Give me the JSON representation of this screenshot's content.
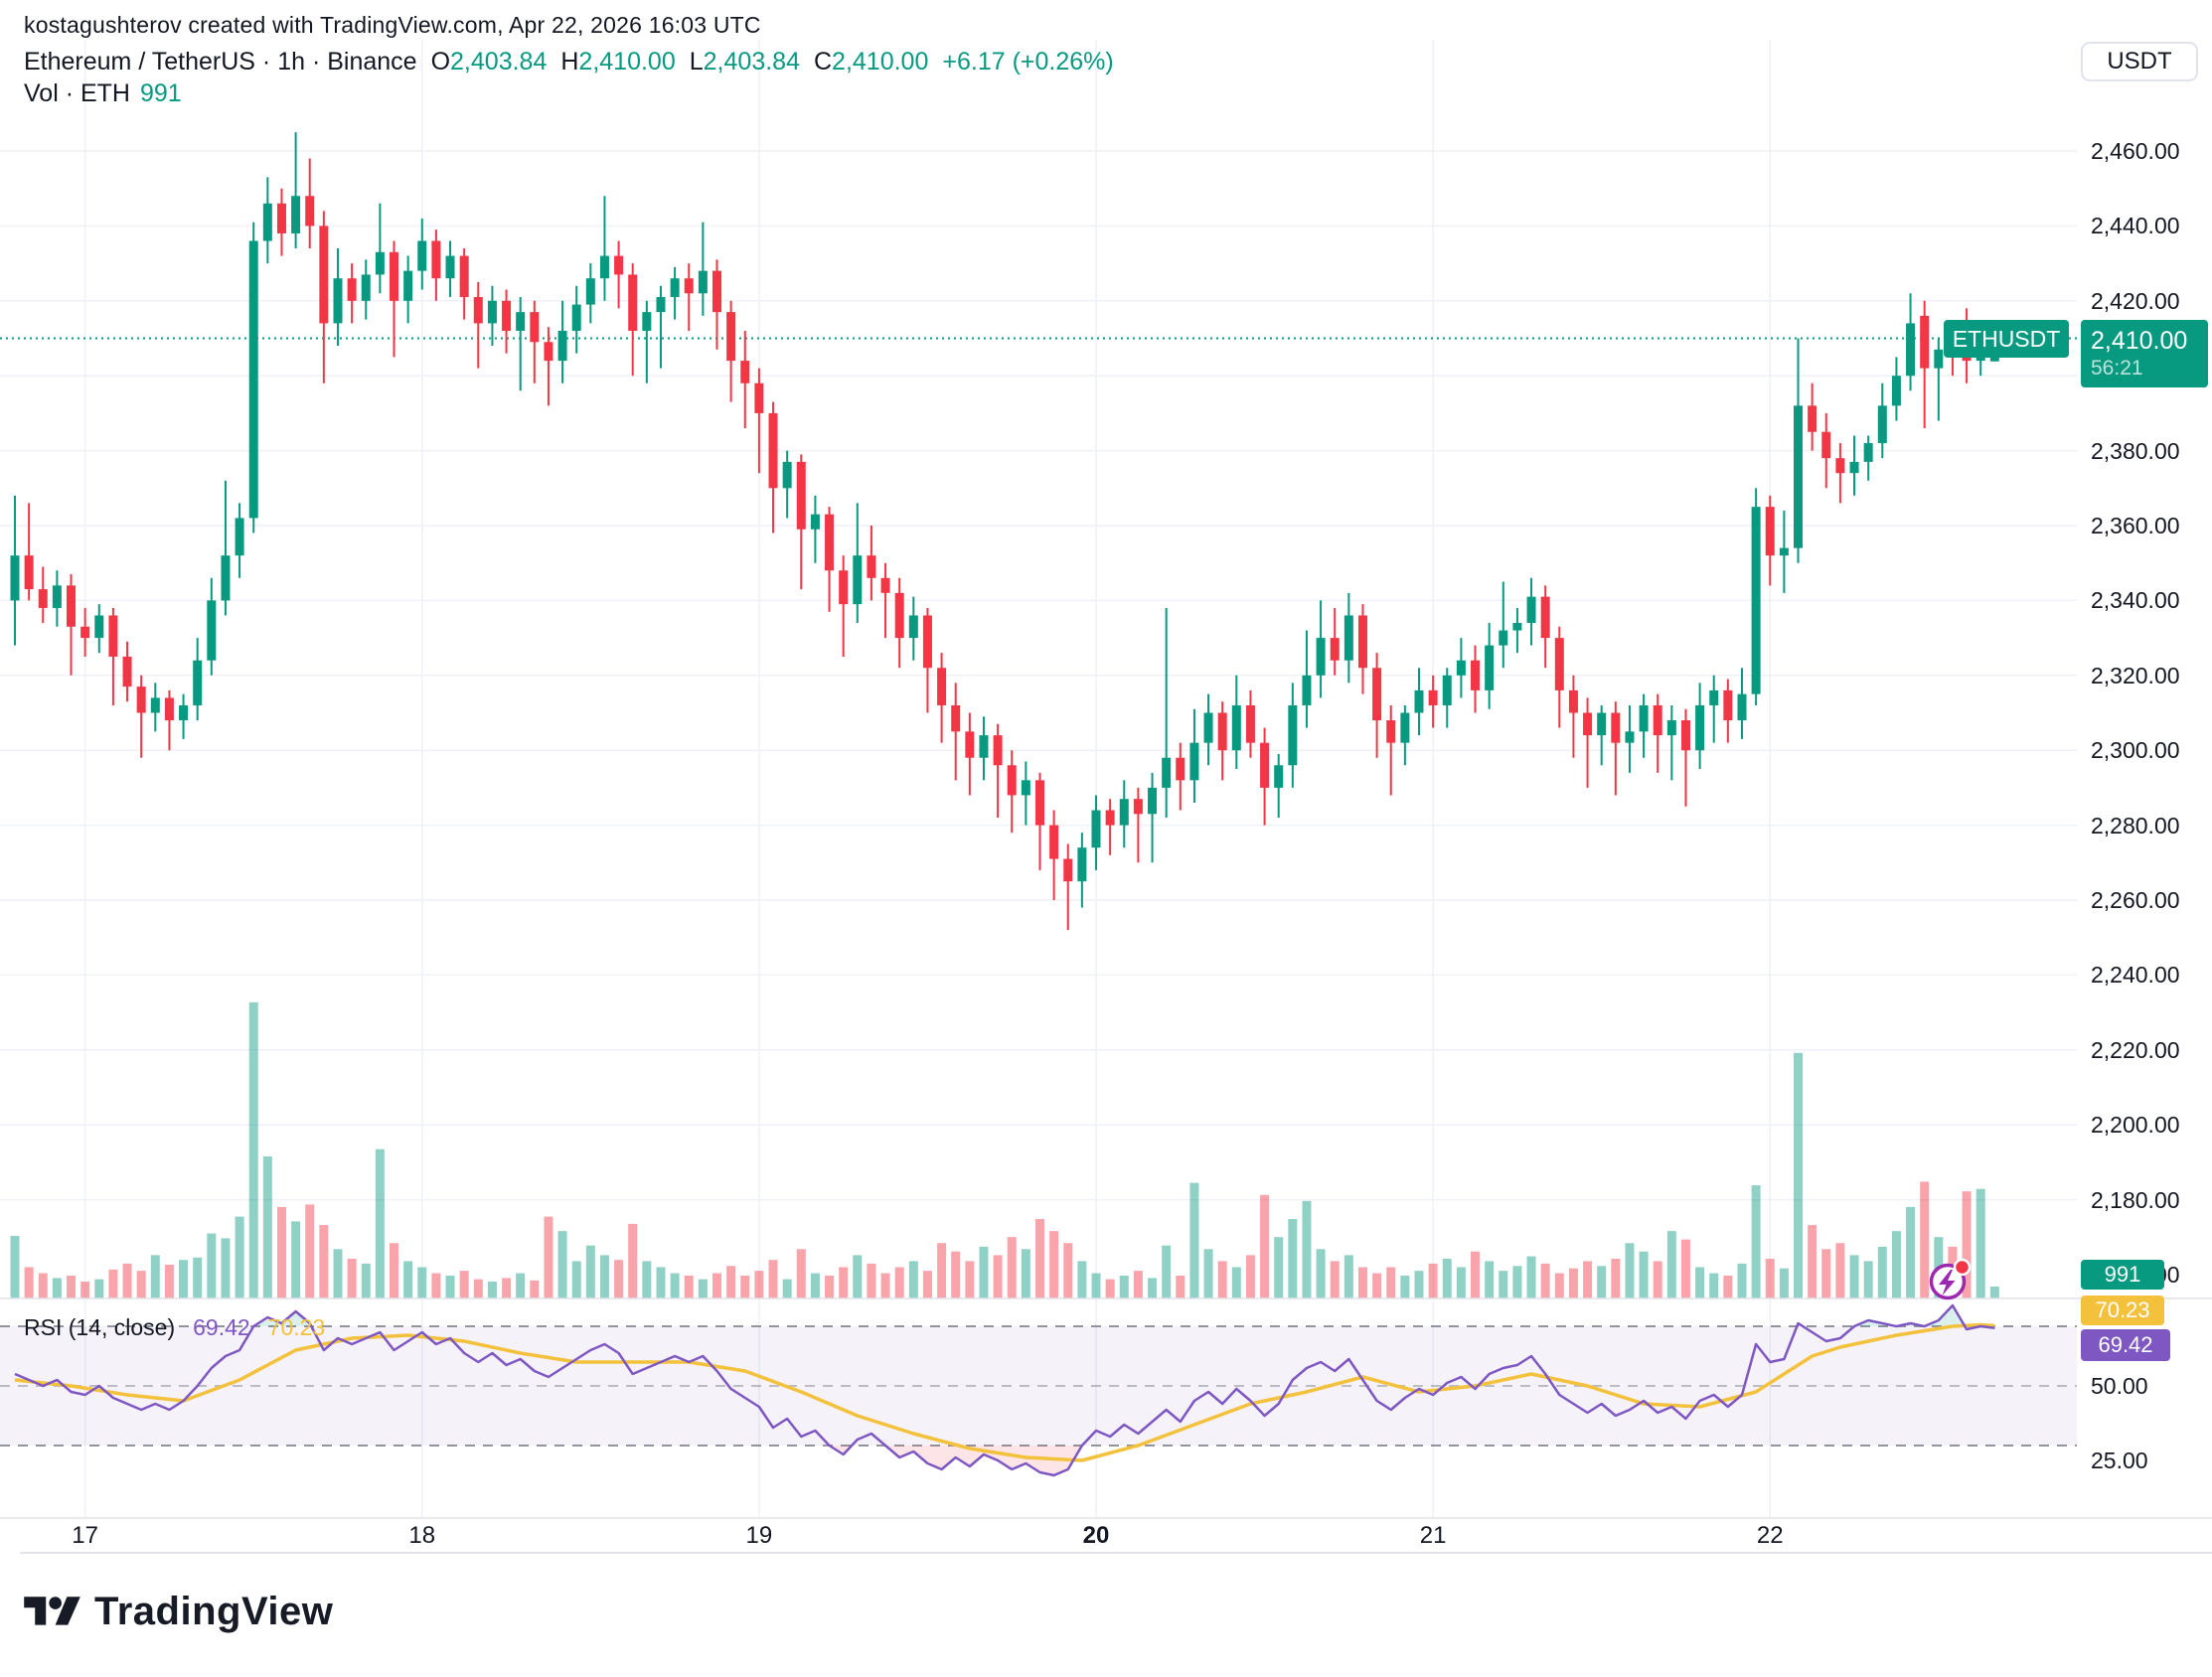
{
  "attribution": "kostagushterov created with TradingView.com, Apr 22, 2026 16:03 UTC",
  "legend": {
    "symbol_line": "Ethereum / TetherUS · 1h · Binance",
    "ohlc": [
      {
        "k": "O",
        "v": "2,403.84"
      },
      {
        "k": "H",
        "v": "2,410.00"
      },
      {
        "k": "L",
        "v": "2,403.84"
      },
      {
        "k": "C",
        "v": "2,410.00"
      }
    ],
    "change": "+6.17 (+0.26%)",
    "volume_label": "Vol · ETH",
    "volume_value": "991"
  },
  "currency_button": "USDT",
  "price_label": {
    "symbol": "ETHUSDT",
    "price": "2,410.00",
    "countdown": "56:21"
  },
  "volume_axis_badge": "991",
  "rsi_panel": {
    "title": "RSI (14, close)",
    "rsi_value": "69.42",
    "ma_value": "70.23",
    "axis_labels": [
      {
        "v": 50,
        "label": "50.00"
      },
      {
        "v": 25,
        "label": "25.00"
      }
    ]
  },
  "logo_text": "TradingView",
  "theme": {
    "up": "#089981",
    "down": "#f23645",
    "vol_up": "rgba(8,153,129,0.45)",
    "vol_down": "rgba(242,54,69,0.45)",
    "rsi_line": "#7e57c2",
    "rsi_ma_line": "#f3c13c",
    "rsi_band_fill": "rgba(126,87,194,0.08)",
    "rsi_over_fill": "rgba(8,153,129,0.15)",
    "rsi_under_fill": "rgba(242,54,69,0.13)",
    "grid": "#eef1f7",
    "divider": "#e0e3eb",
    "dotted_price_line": "#089981",
    "text": "#131722"
  },
  "chart_data": {
    "type": "candlestick",
    "title": "Ethereum / TetherUS · 1h · Binance",
    "ylabel": "USDT",
    "current_price": 2410.0,
    "price_axis": {
      "min": 2160,
      "max": 2460,
      "step": 20,
      "ticks": [
        {
          "v": 2460,
          "label": "2,460.00"
        },
        {
          "v": 2440,
          "label": "2,440.00"
        },
        {
          "v": 2420,
          "label": "2,420.00"
        },
        {
          "v": 2400,
          "label": "2,400.00"
        },
        {
          "v": 2380,
          "label": "2,380.00"
        },
        {
          "v": 2360,
          "label": "2,360.00"
        },
        {
          "v": 2340,
          "label": "2,340.00"
        },
        {
          "v": 2320,
          "label": "2,320.00"
        },
        {
          "v": 2300,
          "label": "2,300.00"
        },
        {
          "v": 2280,
          "label": "2,280.00"
        },
        {
          "v": 2260,
          "label": "2,260.00"
        },
        {
          "v": 2240,
          "label": "2,240.00"
        },
        {
          "v": 2220,
          "label": "2,220.00"
        },
        {
          "v": 2200,
          "label": "2,200.00"
        },
        {
          "v": 2180,
          "label": "2,180.00"
        }
      ],
      "hidden_tick": "2,160.00"
    },
    "time_axis": [
      {
        "label": "17",
        "i": 5,
        "bold": false
      },
      {
        "label": "18",
        "i": 29,
        "bold": false
      },
      {
        "label": "19",
        "i": 53,
        "bold": false
      },
      {
        "label": "20",
        "i": 77,
        "bold": true
      },
      {
        "label": "21",
        "i": 101,
        "bold": false
      },
      {
        "label": "22",
        "i": 125,
        "bold": false
      }
    ],
    "candles": [
      [
        2340,
        2368,
        2328,
        2352
      ],
      [
        2352,
        2366,
        2340,
        2343
      ],
      [
        2343,
        2349,
        2334,
        2338
      ],
      [
        2338,
        2348,
        2333,
        2344
      ],
      [
        2344,
        2347,
        2320,
        2333
      ],
      [
        2333,
        2338,
        2325,
        2330
      ],
      [
        2330,
        2339,
        2326,
        2336
      ],
      [
        2336,
        2338,
        2312,
        2325
      ],
      [
        2325,
        2329,
        2313,
        2317
      ],
      [
        2317,
        2320,
        2298,
        2310
      ],
      [
        2310,
        2318,
        2305,
        2314
      ],
      [
        2314,
        2316,
        2300,
        2308
      ],
      [
        2308,
        2315,
        2303,
        2312
      ],
      [
        2312,
        2330,
        2308,
        2324
      ],
      [
        2324,
        2346,
        2320,
        2340
      ],
      [
        2340,
        2372,
        2336,
        2352
      ],
      [
        2352,
        2366,
        2346,
        2362
      ],
      [
        2362,
        2441,
        2358,
        2436
      ],
      [
        2436,
        2453,
        2430,
        2446
      ],
      [
        2446,
        2450,
        2432,
        2438
      ],
      [
        2438,
        2465,
        2434,
        2448
      ],
      [
        2448,
        2458,
        2434,
        2440
      ],
      [
        2440,
        2444,
        2398,
        2414
      ],
      [
        2414,
        2434,
        2408,
        2426
      ],
      [
        2426,
        2430,
        2414,
        2420
      ],
      [
        2420,
        2431,
        2415,
        2427
      ],
      [
        2427,
        2446,
        2422,
        2433
      ],
      [
        2433,
        2436,
        2405,
        2420
      ],
      [
        2420,
        2432,
        2414,
        2428
      ],
      [
        2428,
        2442,
        2423,
        2436
      ],
      [
        2436,
        2439,
        2420,
        2426
      ],
      [
        2426,
        2436,
        2421,
        2432
      ],
      [
        2432,
        2434,
        2415,
        2421
      ],
      [
        2421,
        2425,
        2402,
        2414
      ],
      [
        2414,
        2424,
        2408,
        2420
      ],
      [
        2420,
        2423,
        2406,
        2412
      ],
      [
        2412,
        2421,
        2396,
        2417
      ],
      [
        2417,
        2420,
        2398,
        2409
      ],
      [
        2409,
        2413,
        2392,
        2404
      ],
      [
        2404,
        2420,
        2398,
        2412
      ],
      [
        2412,
        2424,
        2406,
        2419
      ],
      [
        2419,
        2430,
        2414,
        2426
      ],
      [
        2426,
        2448,
        2420,
        2432
      ],
      [
        2432,
        2436,
        2418,
        2427
      ],
      [
        2427,
        2430,
        2400,
        2412
      ],
      [
        2412,
        2420,
        2398,
        2417
      ],
      [
        2417,
        2424,
        2402,
        2421
      ],
      [
        2421,
        2429,
        2415,
        2426
      ],
      [
        2426,
        2430,
        2412,
        2422
      ],
      [
        2422,
        2441,
        2416,
        2428
      ],
      [
        2428,
        2431,
        2407,
        2417
      ],
      [
        2417,
        2420,
        2393,
        2404
      ],
      [
        2404,
        2412,
        2386,
        2398
      ],
      [
        2398,
        2402,
        2374,
        2390
      ],
      [
        2390,
        2393,
        2358,
        2370
      ],
      [
        2370,
        2380,
        2362,
        2377
      ],
      [
        2377,
        2379,
        2343,
        2359
      ],
      [
        2359,
        2368,
        2350,
        2363
      ],
      [
        2363,
        2365,
        2337,
        2348
      ],
      [
        2348,
        2352,
        2325,
        2339
      ],
      [
        2339,
        2366,
        2334,
        2352
      ],
      [
        2352,
        2360,
        2340,
        2346
      ],
      [
        2346,
        2350,
        2330,
        2342
      ],
      [
        2342,
        2346,
        2322,
        2330
      ],
      [
        2330,
        2341,
        2324,
        2336
      ],
      [
        2336,
        2338,
        2310,
        2322
      ],
      [
        2322,
        2326,
        2302,
        2312
      ],
      [
        2312,
        2318,
        2292,
        2305
      ],
      [
        2305,
        2310,
        2288,
        2298
      ],
      [
        2298,
        2309,
        2292,
        2304
      ],
      [
        2304,
        2307,
        2282,
        2296
      ],
      [
        2296,
        2300,
        2278,
        2288
      ],
      [
        2288,
        2297,
        2280,
        2292
      ],
      [
        2292,
        2294,
        2268,
        2280
      ],
      [
        2280,
        2284,
        2260,
        2271
      ],
      [
        2271,
        2275,
        2252,
        2265
      ],
      [
        2265,
        2278,
        2258,
        2274
      ],
      [
        2274,
        2288,
        2268,
        2284
      ],
      [
        2284,
        2287,
        2272,
        2280
      ],
      [
        2280,
        2292,
        2274,
        2287
      ],
      [
        2287,
        2290,
        2270,
        2283
      ],
      [
        2283,
        2294,
        2270,
        2290
      ],
      [
        2290,
        2338,
        2282,
        2298
      ],
      [
        2298,
        2302,
        2284,
        2292
      ],
      [
        2292,
        2311,
        2286,
        2302
      ],
      [
        2302,
        2315,
        2296,
        2310
      ],
      [
        2310,
        2313,
        2292,
        2300
      ],
      [
        2300,
        2320,
        2295,
        2312
      ],
      [
        2312,
        2316,
        2298,
        2302
      ],
      [
        2302,
        2306,
        2280,
        2290
      ],
      [
        2290,
        2299,
        2282,
        2296
      ],
      [
        2296,
        2318,
        2290,
        2312
      ],
      [
        2312,
        2332,
        2306,
        2320
      ],
      [
        2320,
        2340,
        2314,
        2330
      ],
      [
        2330,
        2338,
        2320,
        2324
      ],
      [
        2324,
        2342,
        2318,
        2336
      ],
      [
        2336,
        2339,
        2315,
        2322
      ],
      [
        2322,
        2326,
        2298,
        2308
      ],
      [
        2308,
        2312,
        2288,
        2302
      ],
      [
        2302,
        2312,
        2296,
        2310
      ],
      [
        2310,
        2322,
        2304,
        2316
      ],
      [
        2316,
        2320,
        2306,
        2312
      ],
      [
        2312,
        2322,
        2306,
        2320
      ],
      [
        2320,
        2330,
        2314,
        2324
      ],
      [
        2324,
        2328,
        2310,
        2316
      ],
      [
        2316,
        2334,
        2311,
        2328
      ],
      [
        2328,
        2345,
        2322,
        2332
      ],
      [
        2332,
        2338,
        2326,
        2334
      ],
      [
        2334,
        2346,
        2328,
        2341
      ],
      [
        2341,
        2344,
        2322,
        2330
      ],
      [
        2330,
        2333,
        2306,
        2316
      ],
      [
        2316,
        2320,
        2298,
        2310
      ],
      [
        2310,
        2314,
        2290,
        2304
      ],
      [
        2304,
        2312,
        2296,
        2310
      ],
      [
        2310,
        2313,
        2288,
        2302
      ],
      [
        2302,
        2312,
        2294,
        2305
      ],
      [
        2305,
        2315,
        2298,
        2312
      ],
      [
        2312,
        2315,
        2294,
        2304
      ],
      [
        2304,
        2312,
        2292,
        2308
      ],
      [
        2308,
        2311,
        2285,
        2300
      ],
      [
        2300,
        2318,
        2295,
        2312
      ],
      [
        2312,
        2320,
        2302,
        2316
      ],
      [
        2316,
        2319,
        2302,
        2308
      ],
      [
        2308,
        2322,
        2303,
        2315
      ],
      [
        2315,
        2370,
        2312,
        2365
      ],
      [
        2365,
        2368,
        2344,
        2352
      ],
      [
        2352,
        2364,
        2342,
        2354
      ],
      [
        2354,
        2410,
        2350,
        2392
      ],
      [
        2392,
        2398,
        2380,
        2385
      ],
      [
        2385,
        2390,
        2370,
        2378
      ],
      [
        2378,
        2382,
        2366,
        2374
      ],
      [
        2374,
        2384,
        2368,
        2377
      ],
      [
        2377,
        2384,
        2372,
        2382
      ],
      [
        2382,
        2398,
        2378,
        2392
      ],
      [
        2392,
        2405,
        2388,
        2400
      ],
      [
        2400,
        2422,
        2396,
        2414
      ],
      [
        2416,
        2420,
        2386,
        2402
      ],
      [
        2402,
        2410,
        2388,
        2407
      ],
      [
        2407,
        2412,
        2400,
        2406
      ],
      [
        2406,
        2418,
        2398,
        2404
      ],
      [
        2404,
        2412,
        2400,
        2409
      ],
      [
        2403.84,
        2410,
        2403.84,
        2410
      ]
    ],
    "volumes": [
      5200,
      2600,
      2100,
      1700,
      1900,
      1400,
      1600,
      2400,
      2900,
      2300,
      3600,
      2800,
      3200,
      3400,
      5400,
      5000,
      6800,
      24600,
      11800,
      7600,
      6400,
      7800,
      6100,
      4100,
      3300,
      2900,
      12400,
      4600,
      3100,
      2600,
      2100,
      1900,
      2300,
      1600,
      1400,
      1700,
      2100,
      1500,
      6800,
      5600,
      3100,
      4400,
      3600,
      3200,
      6200,
      3100,
      2600,
      2100,
      1900,
      1600,
      2100,
      2700,
      1900,
      2300,
      3200,
      1600,
      4100,
      2100,
      1900,
      2600,
      3600,
      2900,
      2100,
      2600,
      3100,
      2300,
      4600,
      3900,
      3100,
      4300,
      3600,
      5100,
      4100,
      6600,
      5600,
      4600,
      3100,
      2100,
      1600,
      1900,
      2300,
      1700,
      4400,
      1900,
      9600,
      4100,
      3100,
      2600,
      3600,
      8600,
      5100,
      6600,
      8100,
      4100,
      3100,
      3600,
      2600,
      2100,
      2600,
      1900,
      2300,
      2900,
      3300,
      2600,
      3900,
      3100,
      2300,
      2700,
      3500,
      2900,
      2100,
      2500,
      3100,
      2700,
      3300,
      4600,
      3900,
      3100,
      5600,
      4900,
      2600,
      2100,
      1900,
      2900,
      9400,
      3300,
      2500,
      20400,
      6100,
      4100,
      4600,
      3600,
      3100,
      4300,
      5600,
      7600,
      9700,
      5100,
      4300,
      8900,
      9100,
      991
    ],
    "rsi": {
      "levels": [
        70,
        50,
        30
      ],
      "values": [
        54,
        52,
        50,
        52,
        48,
        47,
        50,
        46,
        44,
        42,
        44,
        42,
        45,
        50,
        56,
        60,
        62,
        70,
        73,
        71,
        75,
        71,
        62,
        66,
        64,
        66,
        68,
        62,
        65,
        68,
        64,
        66,
        61,
        58,
        61,
        57,
        59,
        55,
        53,
        56,
        59,
        62,
        64,
        61,
        54,
        56,
        58,
        60,
        58,
        60,
        55,
        49,
        46,
        43,
        36,
        39,
        33,
        35,
        30,
        27,
        32,
        34,
        30,
        26,
        28,
        24,
        22,
        26,
        23,
        27,
        25,
        22,
        24,
        21,
        20,
        22,
        30,
        35,
        33,
        37,
        34,
        38,
        42,
        38,
        45,
        48,
        44,
        49,
        45,
        40,
        44,
        52,
        56,
        58,
        55,
        59,
        52,
        45,
        42,
        46,
        49,
        47,
        51,
        53,
        49,
        54,
        56,
        57,
        60,
        54,
        47,
        44,
        41,
        44,
        40,
        42,
        45,
        41,
        43,
        39,
        45,
        47,
        43,
        47,
        64,
        58,
        59,
        71,
        68,
        65,
        66,
        70,
        72,
        71,
        70,
        71,
        70,
        72,
        77,
        69,
        70,
        69.42
      ],
      "ma_points": [
        [
          0,
          52
        ],
        [
          4,
          50
        ],
        [
          8,
          47
        ],
        [
          12,
          45
        ],
        [
          16,
          52
        ],
        [
          20,
          62
        ],
        [
          24,
          66
        ],
        [
          28,
          67
        ],
        [
          32,
          65
        ],
        [
          36,
          61
        ],
        [
          40,
          58
        ],
        [
          44,
          58
        ],
        [
          48,
          58
        ],
        [
          52,
          55
        ],
        [
          56,
          48
        ],
        [
          60,
          40
        ],
        [
          64,
          34
        ],
        [
          68,
          29
        ],
        [
          72,
          26
        ],
        [
          76,
          25
        ],
        [
          80,
          30
        ],
        [
          84,
          37
        ],
        [
          88,
          44
        ],
        [
          92,
          48
        ],
        [
          96,
          53
        ],
        [
          100,
          48
        ],
        [
          104,
          50
        ],
        [
          108,
          54
        ],
        [
          112,
          50
        ],
        [
          116,
          44
        ],
        [
          120,
          43
        ],
        [
          124,
          48
        ],
        [
          126,
          54
        ],
        [
          128,
          60
        ],
        [
          130,
          63
        ],
        [
          132,
          65
        ],
        [
          134,
          67
        ],
        [
          136,
          68.5
        ],
        [
          138,
          70
        ],
        [
          140,
          70.5
        ],
        [
          141,
          70.23
        ]
      ]
    }
  }
}
